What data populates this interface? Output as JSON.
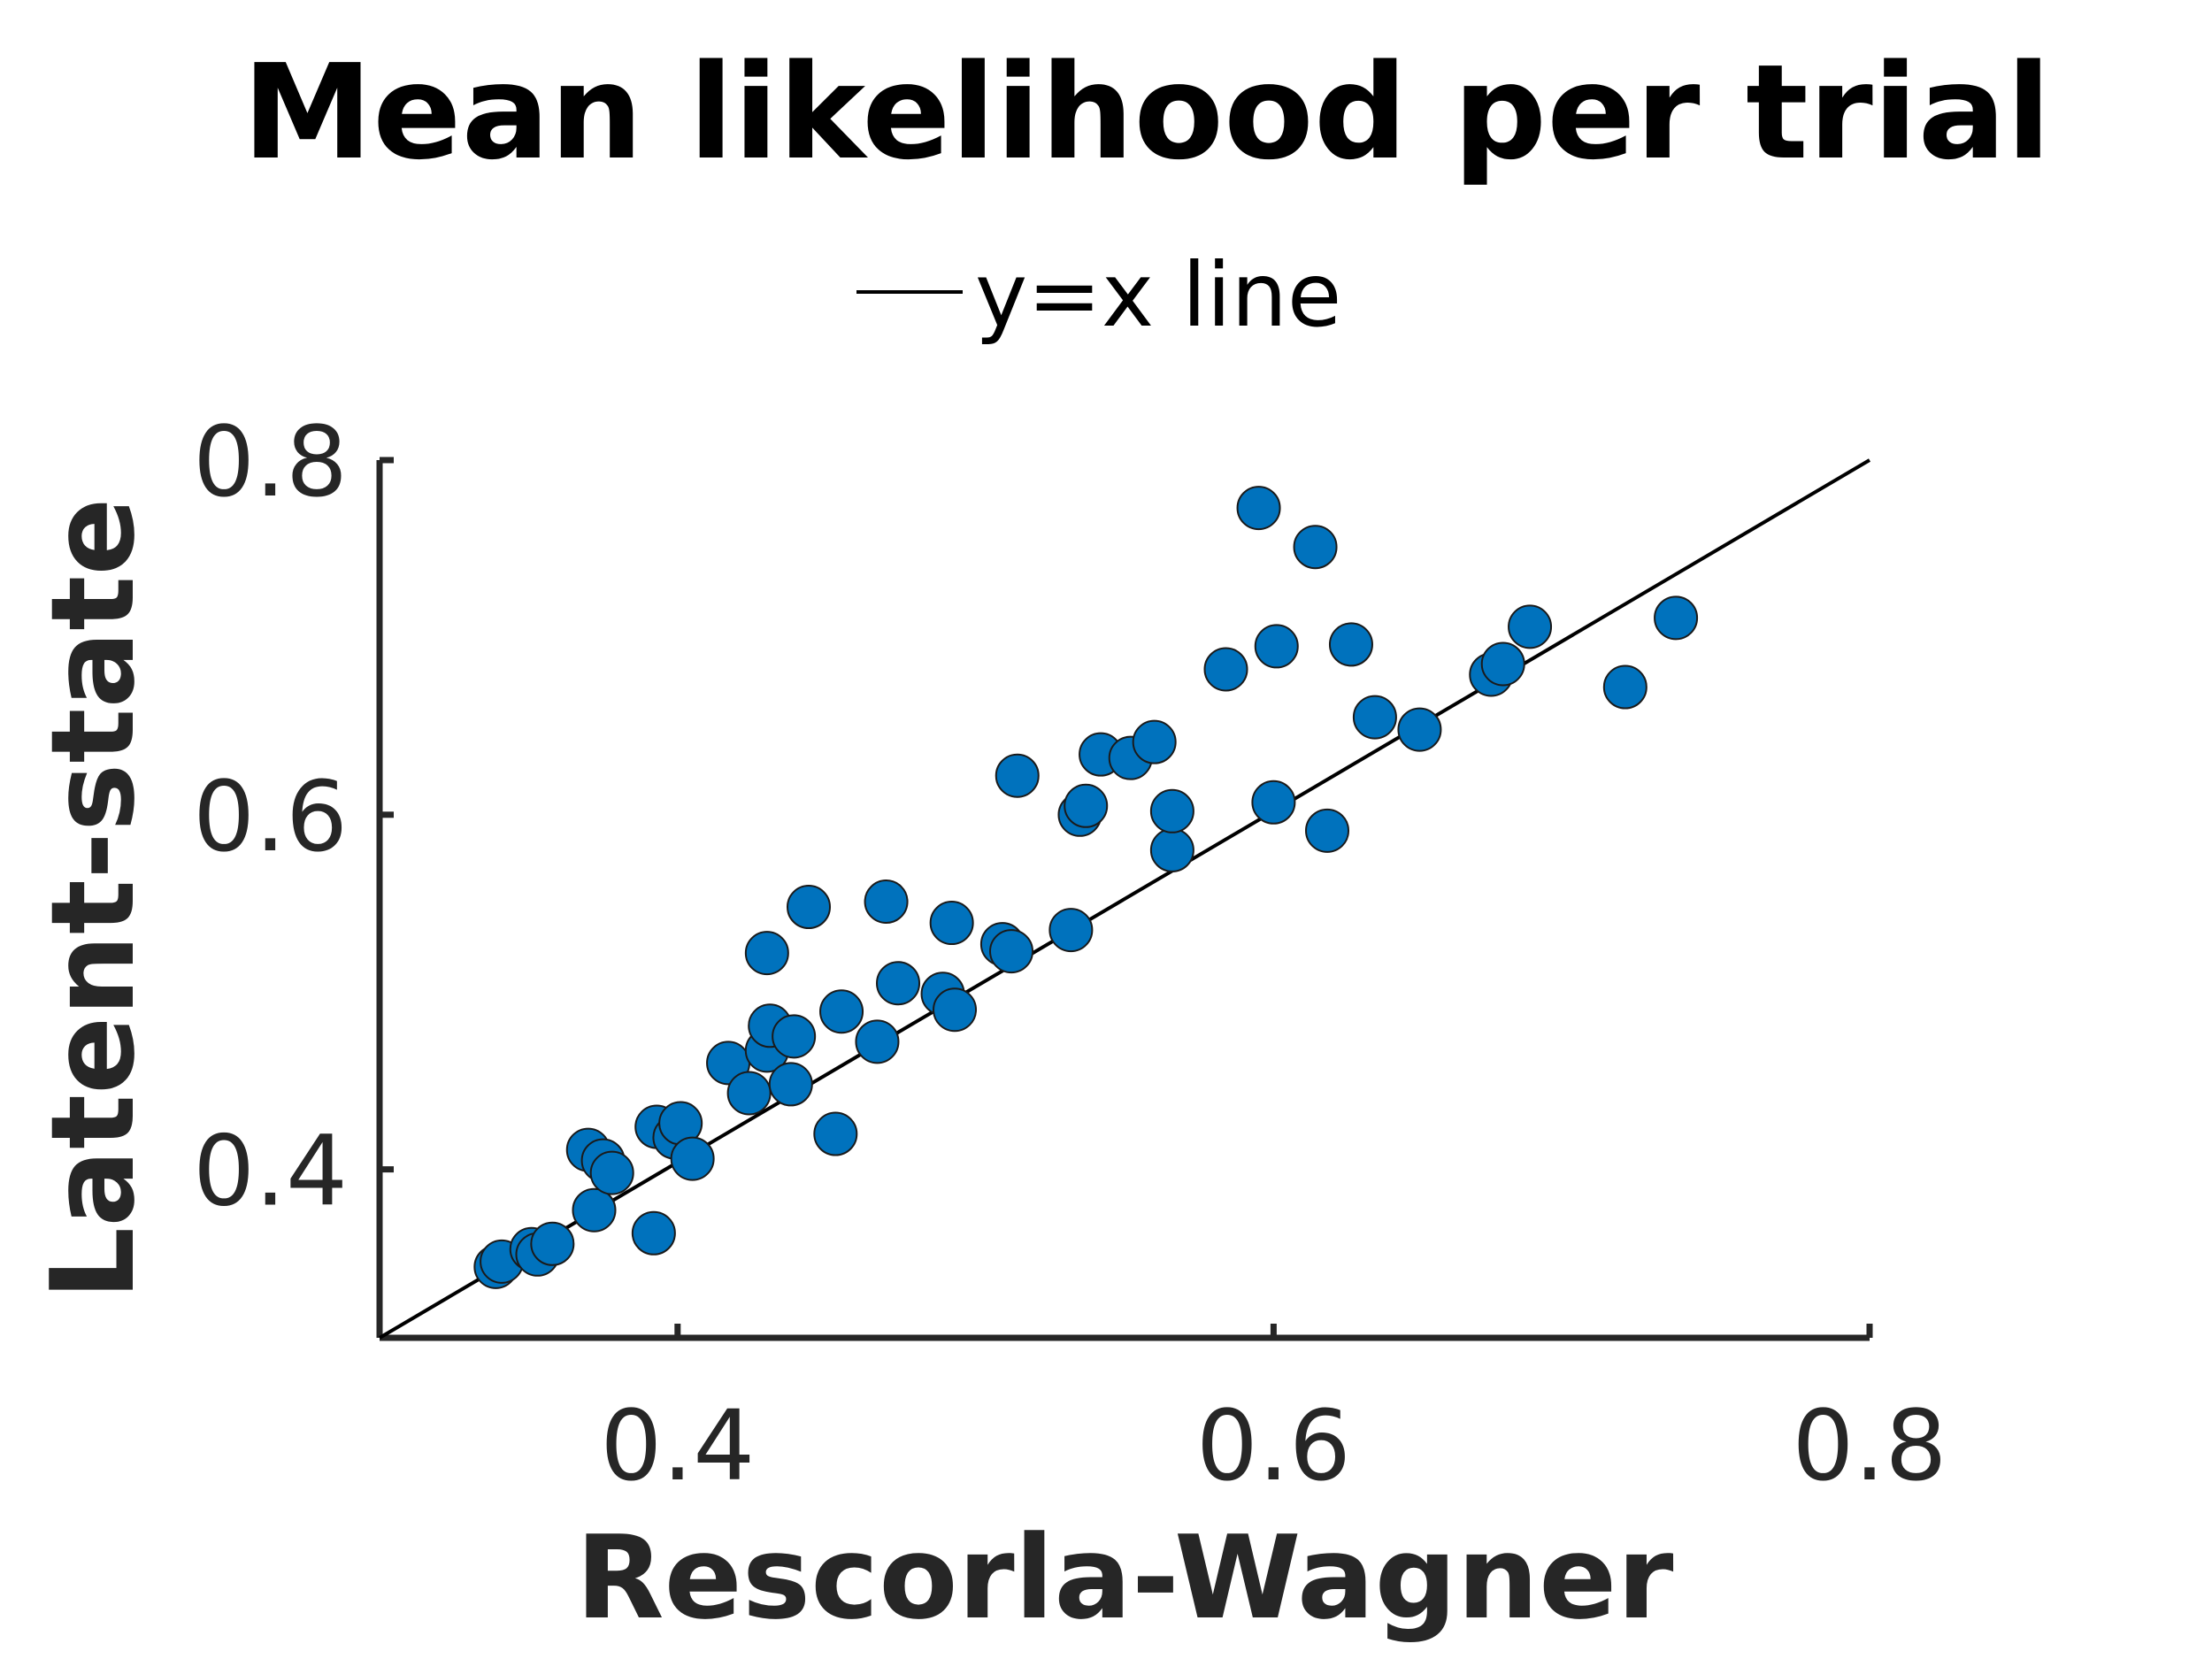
{
  "chart_data": {
    "type": "scatter",
    "title": "Mean likelihood per trial",
    "xlabel": "Rescorla-Wagner",
    "ylabel": "Latent-state",
    "xlim": [
      0.3,
      0.8
    ],
    "ylim": [
      0.305,
      0.8
    ],
    "xticks": [
      0.4,
      0.6,
      0.8
    ],
    "yticks": [
      0.4,
      0.6,
      0.8
    ],
    "xtick_labels": [
      "0.4",
      "0.6",
      "0.8"
    ],
    "ytick_labels": [
      "0.4",
      "0.6",
      "0.8"
    ],
    "legend": {
      "position": "top-center",
      "entries": [
        "y=x line"
      ]
    },
    "grid": false,
    "reference_line": {
      "label": "y=x line",
      "from": [
        0.3,
        0.305
      ],
      "to": [
        0.8,
        0.8
      ]
    },
    "series": [
      {
        "color": "#0072BD",
        "edge_color": "#1a1a1a",
        "points": [
          [
            0.339,
            0.345
          ],
          [
            0.341,
            0.348
          ],
          [
            0.351,
            0.355
          ],
          [
            0.353,
            0.352
          ],
          [
            0.358,
            0.358
          ],
          [
            0.37,
            0.411
          ],
          [
            0.372,
            0.377
          ],
          [
            0.375,
            0.405
          ],
          [
            0.378,
            0.398
          ],
          [
            0.392,
            0.364
          ],
          [
            0.393,
            0.424
          ],
          [
            0.399,
            0.418
          ],
          [
            0.401,
            0.426
          ],
          [
            0.405,
            0.406
          ],
          [
            0.417,
            0.46
          ],
          [
            0.424,
            0.443
          ],
          [
            0.43,
            0.467
          ],
          [
            0.43,
            0.522
          ],
          [
            0.431,
            0.481
          ],
          [
            0.438,
            0.448
          ],
          [
            0.439,
            0.475
          ],
          [
            0.444,
            0.548
          ],
          [
            0.453,
            0.42
          ],
          [
            0.455,
            0.489
          ],
          [
            0.467,
            0.472
          ],
          [
            0.47,
            0.551
          ],
          [
            0.474,
            0.505
          ],
          [
            0.489,
            0.499
          ],
          [
            0.492,
            0.539
          ],
          [
            0.493,
            0.49
          ],
          [
            0.509,
            0.527
          ],
          [
            0.512,
            0.523
          ],
          [
            0.514,
            0.622
          ],
          [
            0.532,
            0.535
          ],
          [
            0.535,
            0.6
          ],
          [
            0.537,
            0.605
          ],
          [
            0.542,
            0.634
          ],
          [
            0.552,
            0.632
          ],
          [
            0.56,
            0.641
          ],
          [
            0.566,
            0.58
          ],
          [
            0.566,
            0.602
          ],
          [
            0.584,
            0.682
          ],
          [
            0.595,
            0.773
          ],
          [
            0.6,
            0.607
          ],
          [
            0.601,
            0.695
          ],
          [
            0.614,
            0.751
          ],
          [
            0.618,
            0.591
          ],
          [
            0.626,
            0.696
          ],
          [
            0.634,
            0.655
          ],
          [
            0.649,
            0.648
          ],
          [
            0.673,
            0.679
          ],
          [
            0.677,
            0.685
          ],
          [
            0.686,
            0.706
          ],
          [
            0.718,
            0.672
          ],
          [
            0.735,
            0.711
          ]
        ]
      }
    ]
  }
}
